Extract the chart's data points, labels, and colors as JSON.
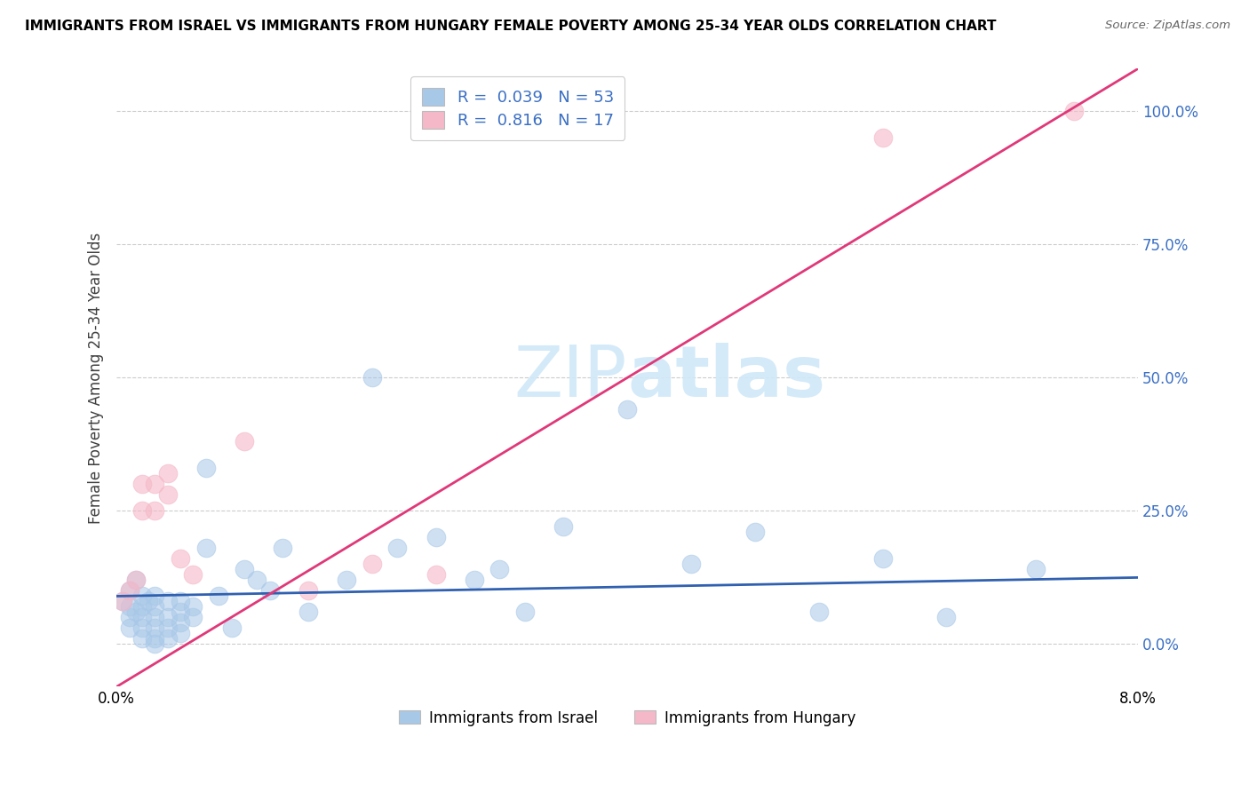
{
  "title": "IMMIGRANTS FROM ISRAEL VS IMMIGRANTS FROM HUNGARY FEMALE POVERTY AMONG 25-34 YEAR OLDS CORRELATION CHART",
  "source": "Source: ZipAtlas.com",
  "ylabel_left": "Female Poverty Among 25-34 Year Olds",
  "ytick_labels": [
    "0.0%",
    "25.0%",
    "50.0%",
    "75.0%",
    "100.0%"
  ],
  "ytick_values": [
    0.0,
    0.25,
    0.5,
    0.75,
    1.0
  ],
  "xlim": [
    0.0,
    0.08
  ],
  "ylim": [
    -0.08,
    1.08
  ],
  "legend_israel": {
    "R": 0.039,
    "N": 53
  },
  "legend_hungary": {
    "R": 0.816,
    "N": 17
  },
  "israel_color": "#a8c8e8",
  "hungary_color": "#f5b8c8",
  "israel_line_color": "#3060b0",
  "hungary_line_color": "#e03878",
  "watermark_color": "#d0e8f8",
  "israel_x": [
    0.0005,
    0.001,
    0.001,
    0.001,
    0.001,
    0.0015,
    0.0015,
    0.002,
    0.002,
    0.002,
    0.002,
    0.002,
    0.0025,
    0.003,
    0.003,
    0.003,
    0.003,
    0.003,
    0.003,
    0.004,
    0.004,
    0.004,
    0.004,
    0.005,
    0.005,
    0.005,
    0.005,
    0.006,
    0.006,
    0.007,
    0.007,
    0.008,
    0.009,
    0.01,
    0.011,
    0.012,
    0.013,
    0.015,
    0.018,
    0.02,
    0.022,
    0.025,
    0.028,
    0.03,
    0.032,
    0.035,
    0.04,
    0.045,
    0.05,
    0.055,
    0.06,
    0.065,
    0.072
  ],
  "israel_y": [
    0.08,
    0.1,
    0.07,
    0.05,
    0.03,
    0.12,
    0.06,
    0.09,
    0.07,
    0.05,
    0.03,
    0.01,
    0.08,
    0.09,
    0.07,
    0.05,
    0.03,
    0.01,
    0.0,
    0.08,
    0.05,
    0.03,
    0.01,
    0.08,
    0.06,
    0.04,
    0.02,
    0.07,
    0.05,
    0.33,
    0.18,
    0.09,
    0.03,
    0.14,
    0.12,
    0.1,
    0.18,
    0.06,
    0.12,
    0.5,
    0.18,
    0.2,
    0.12,
    0.14,
    0.06,
    0.22,
    0.44,
    0.15,
    0.21,
    0.06,
    0.16,
    0.05,
    0.14
  ],
  "hungary_x": [
    0.0005,
    0.001,
    0.0015,
    0.002,
    0.002,
    0.003,
    0.003,
    0.004,
    0.004,
    0.005,
    0.006,
    0.01,
    0.015,
    0.02,
    0.025,
    0.06,
    0.075
  ],
  "hungary_y": [
    0.08,
    0.1,
    0.12,
    0.3,
    0.25,
    0.3,
    0.25,
    0.32,
    0.28,
    0.16,
    0.13,
    0.38,
    0.1,
    0.15,
    0.13,
    0.95,
    1.0
  ],
  "israel_line_x": [
    0.0,
    0.08
  ],
  "israel_line_y": [
    0.09,
    0.125
  ],
  "hungary_line_x": [
    0.0,
    0.08
  ],
  "hungary_line_y": [
    -0.08,
    1.08
  ]
}
